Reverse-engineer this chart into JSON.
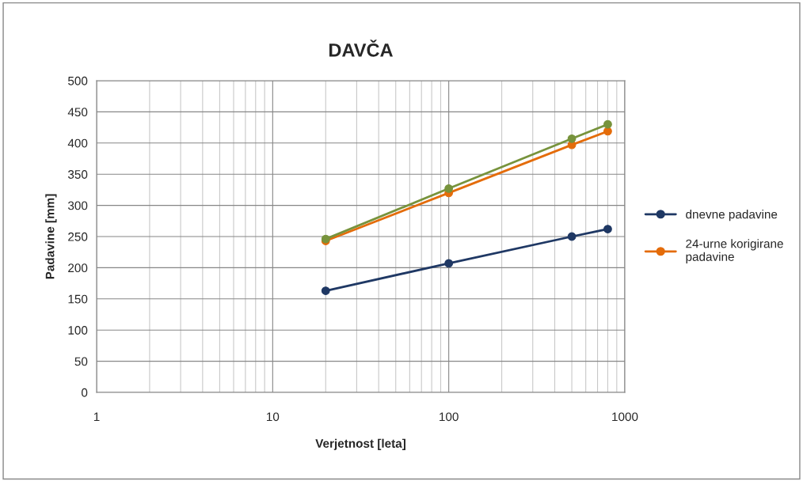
{
  "chart_data": {
    "type": "line",
    "title": "DAVČA",
    "xlabel": "Verjetnost [leta]",
    "ylabel": "Padavine [mm]",
    "x": [
      20,
      100,
      500,
      800
    ],
    "series": [
      {
        "name": "dnevne padavine",
        "color": "#1f3864",
        "values": [
          163,
          207,
          250,
          262
        ]
      },
      {
        "name": "24-urne korigirane padavine",
        "color": "#e46c0a",
        "values": [
          243,
          320,
          397,
          419
        ]
      },
      {
        "color": "#77933c",
        "values": [
          246,
          327,
          407,
          430
        ]
      }
    ],
    "log": "x",
    "xlim": [
      1,
      1000
    ],
    "xticks": [
      1,
      10,
      100,
      1000
    ],
    "ylim": [
      0,
      500
    ],
    "yticks": [
      0,
      50,
      100,
      150,
      200,
      250,
      300,
      350,
      400,
      450,
      500
    ],
    "grid": true,
    "legend": "right",
    "marker": "circle",
    "line_style": "solid"
  }
}
